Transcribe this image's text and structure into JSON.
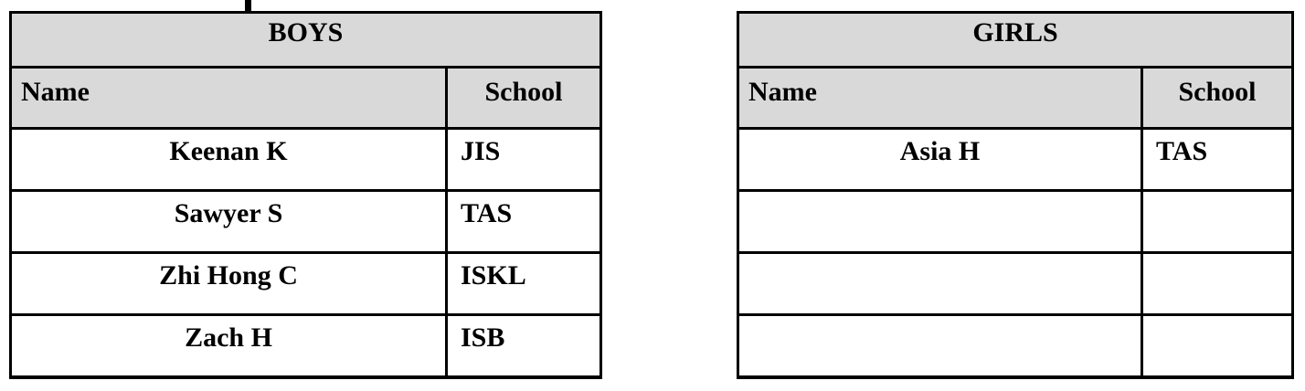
{
  "colors": {
    "header_fill": "#d9d9d9",
    "border": "#000000",
    "background": "#ffffff",
    "text": "#000000"
  },
  "boys": {
    "title": "BOYS",
    "columns": {
      "name": "Name",
      "school": "School"
    },
    "rows": [
      {
        "name": "Keenan K",
        "school": "JIS"
      },
      {
        "name": "Sawyer S",
        "school": "TAS"
      },
      {
        "name": "Zhi Hong C",
        "school": "ISKL"
      },
      {
        "name": "Zach H",
        "school": "ISB"
      }
    ]
  },
  "girls": {
    "title": "GIRLS",
    "columns": {
      "name": "Name",
      "school": "School"
    },
    "rows": [
      {
        "name": "Asia H",
        "school": "TAS"
      },
      {
        "name": "",
        "school": ""
      },
      {
        "name": "",
        "school": ""
      },
      {
        "name": "",
        "school": ""
      }
    ]
  }
}
